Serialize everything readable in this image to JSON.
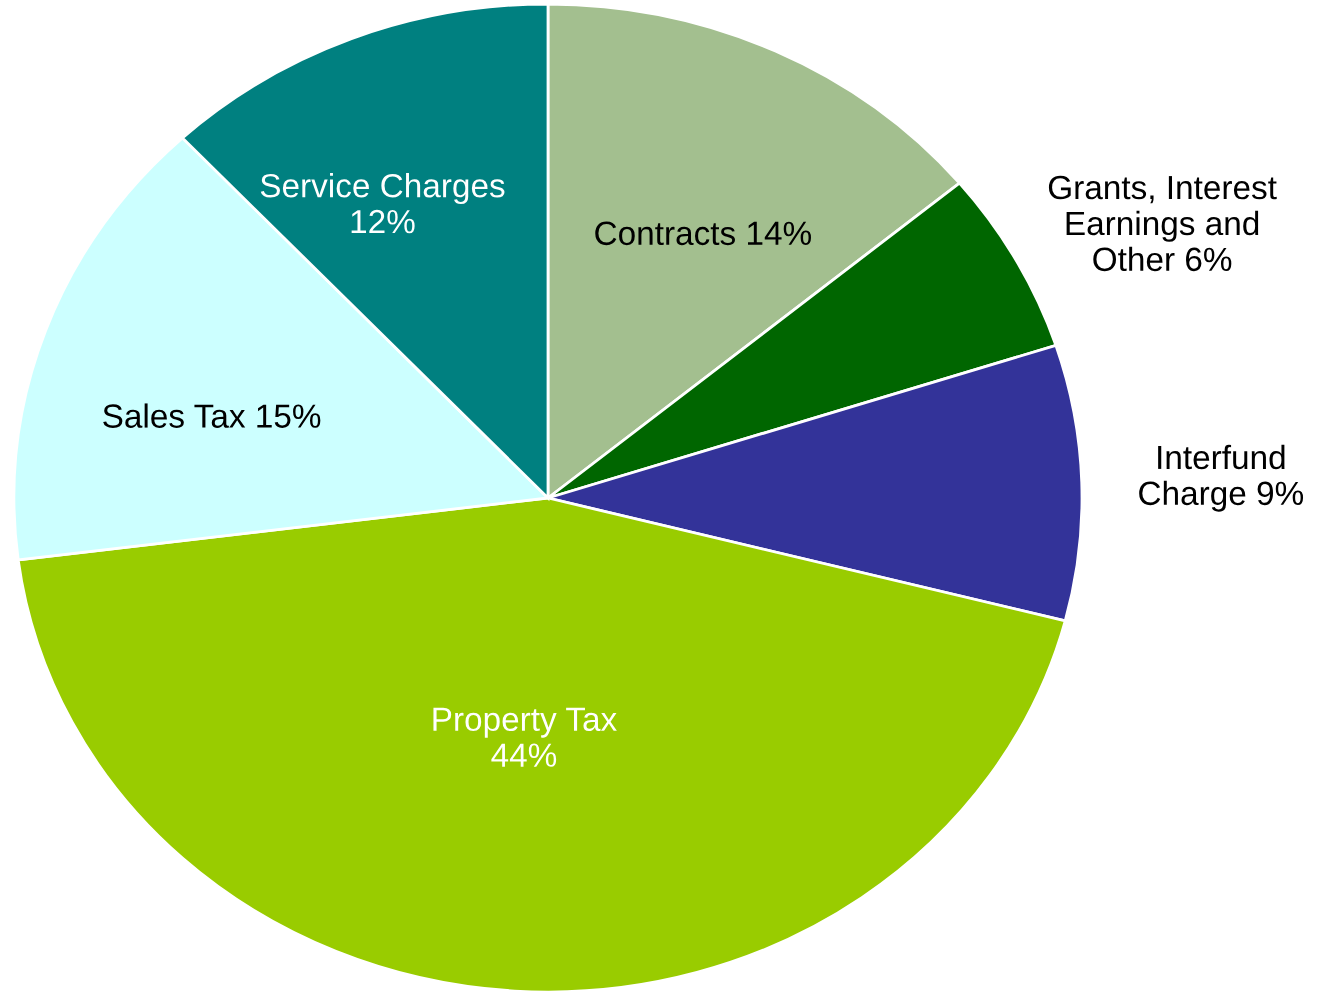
{
  "chart_data": {
    "type": "pie",
    "categories": [
      "Contracts",
      "Grants, Interest\nEarnings and\nOther",
      "Interfund\nCharge",
      "Property Tax",
      "Sales Tax",
      "Service Charges"
    ],
    "values": [
      14,
      6,
      9,
      44,
      15,
      12
    ],
    "colors": [
      "#a3bf8f",
      "#006600",
      "#333399",
      "#99cc00",
      "#ccffff",
      "#008080"
    ],
    "value_labels": [
      "14%",
      "6%",
      "9%",
      "44%",
      "15%",
      "12%"
    ],
    "legend": false
  }
}
